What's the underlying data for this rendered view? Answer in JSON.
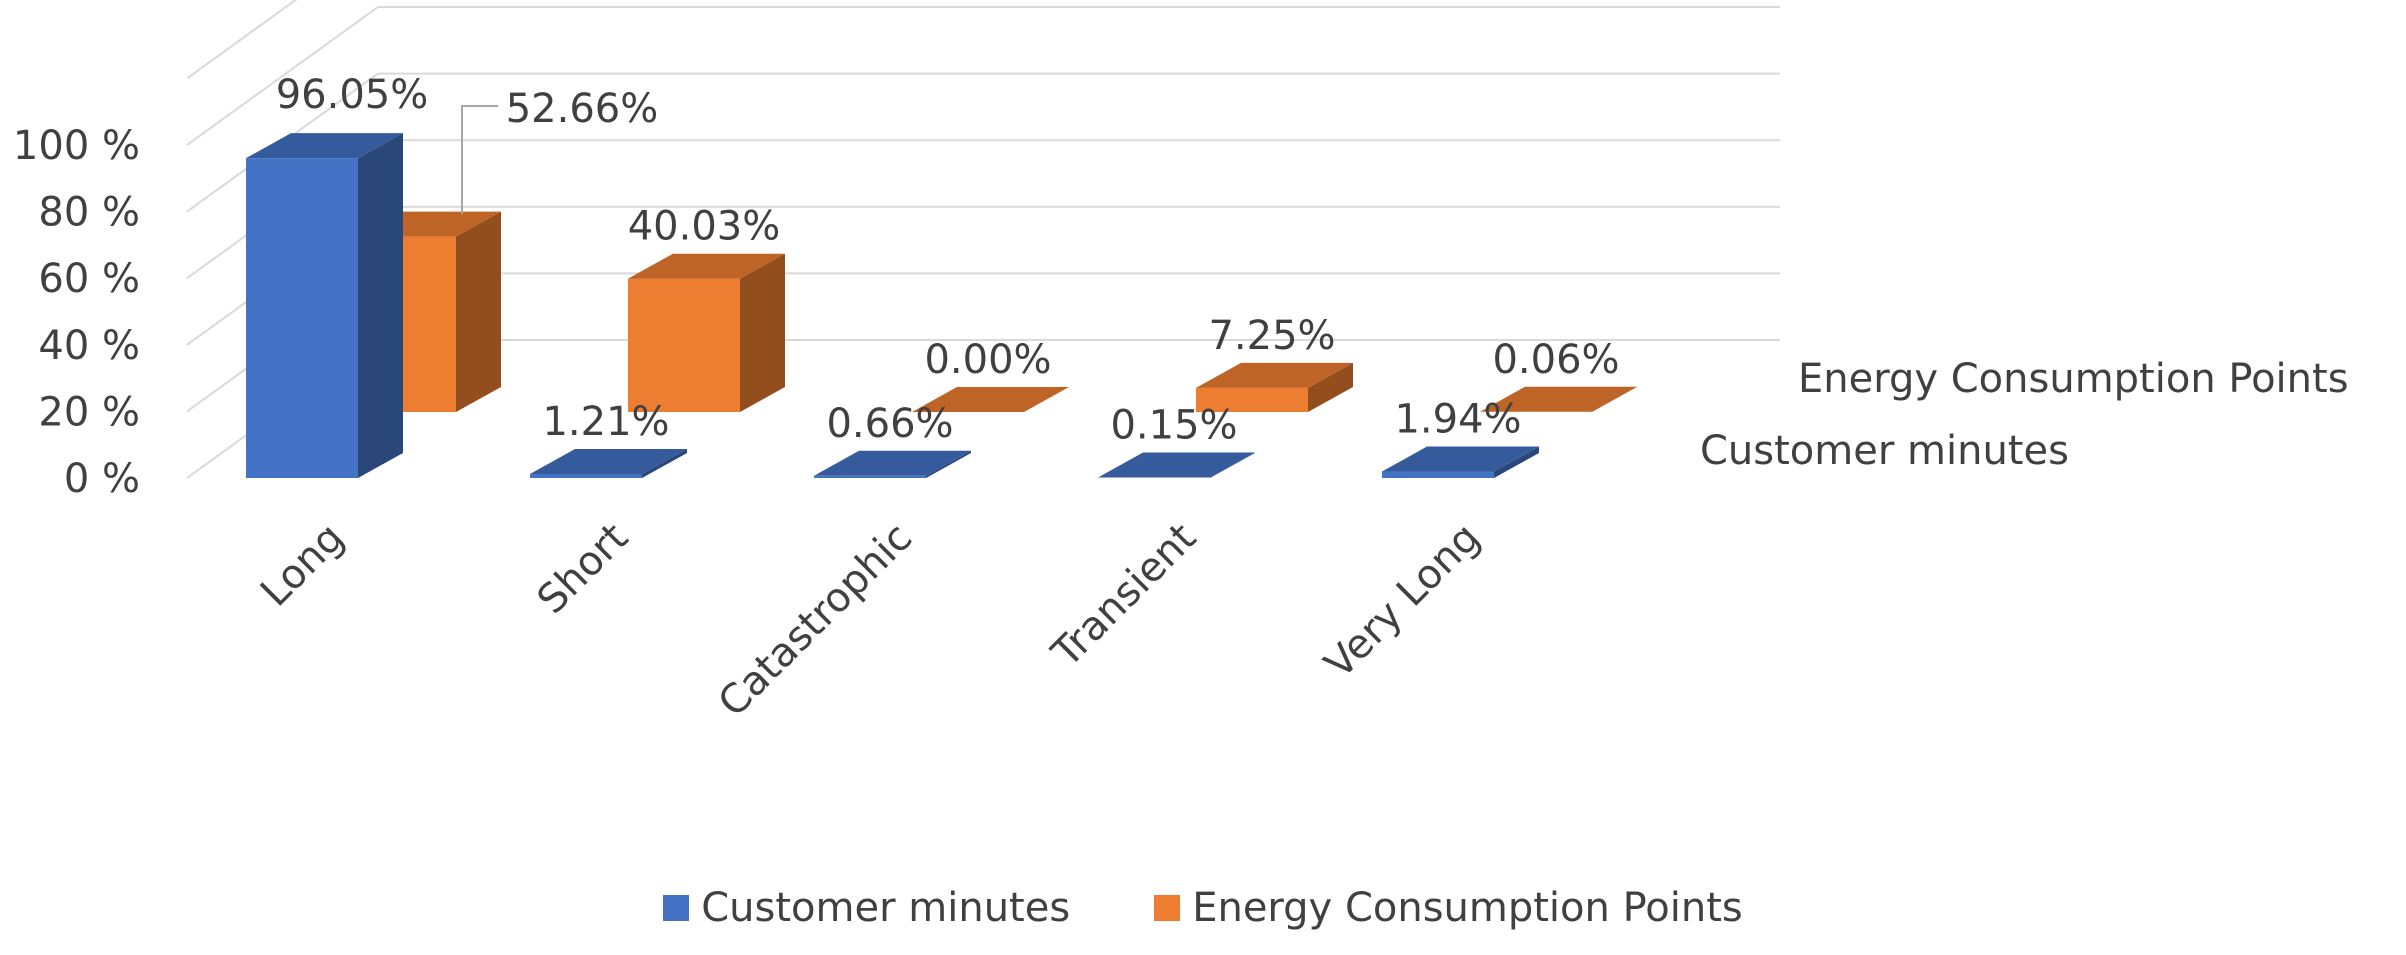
{
  "chart_data": {
    "type": "bar",
    "categories": [
      "Long",
      "Short",
      "Catastrophic",
      "Transient",
      "Very Long"
    ],
    "series": [
      {
        "name": "Customer minutes",
        "values": [
          96.05,
          1.21,
          0.66,
          0.15,
          1.94
        ],
        "labels": [
          "96.05%",
          "1.21%",
          "0.66%",
          "0.15%",
          "1.94%"
        ],
        "color": "#4472C4"
      },
      {
        "name": "Energy Consumption Points",
        "values": [
          52.66,
          40.03,
          0.0,
          7.25,
          0.06
        ],
        "labels": [
          "52.66%",
          "40.03%",
          "0.00%",
          "7.25%",
          "0.06%"
        ],
        "color": "#ED7D31"
      }
    ],
    "y_ticks": [
      "0 %",
      "20 %",
      "40 %",
      "60 %",
      "80 %",
      "100 %"
    ],
    "ylim": [
      0,
      100
    ],
    "grid": true,
    "legend_position": "bottom",
    "style": "3d-column"
  }
}
